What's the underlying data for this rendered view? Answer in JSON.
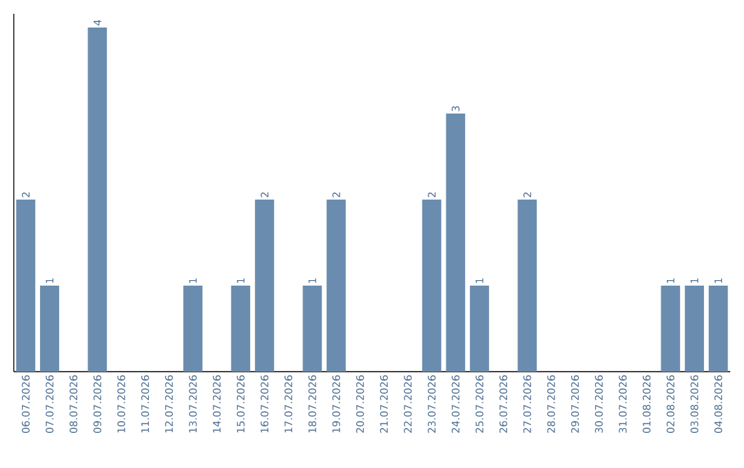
{
  "chart_data": {
    "type": "bar",
    "categories": [
      "06.07.2026",
      "07.07.2026",
      "08.07.2026",
      "09.07.2026",
      "10.07.2026",
      "11.07.2026",
      "12.07.2026",
      "13.07.2026",
      "14.07.2026",
      "15.07.2026",
      "16.07.2026",
      "17.07.2026",
      "18.07.2026",
      "19.07.2026",
      "20.07.2026",
      "21.07.2026",
      "22.07.2026",
      "23.07.2026",
      "24.07.2026",
      "25.07.2026",
      "26.07.2026",
      "27.07.2026",
      "28.07.2026",
      "29.07.2026",
      "30.07.2026",
      "31.07.2026",
      "01.08.2026",
      "02.08.2026",
      "03.08.2026",
      "04.08.2026"
    ],
    "values": [
      2,
      1,
      0,
      4,
      0,
      0,
      0,
      1,
      0,
      1,
      2,
      0,
      1,
      2,
      0,
      0,
      0,
      2,
      3,
      1,
      0,
      2,
      0,
      0,
      0,
      0,
      0,
      1,
      1,
      1
    ],
    "value_labels": [
      "2",
      "1",
      null,
      "4",
      null,
      null,
      null,
      "1",
      null,
      "1",
      "2",
      null,
      "1",
      "2",
      null,
      null,
      null,
      "2",
      "3",
      "1",
      null,
      "2",
      null,
      null,
      null,
      null,
      null,
      "1",
      "1",
      "1"
    ],
    "color": "#6a8caf"
  }
}
